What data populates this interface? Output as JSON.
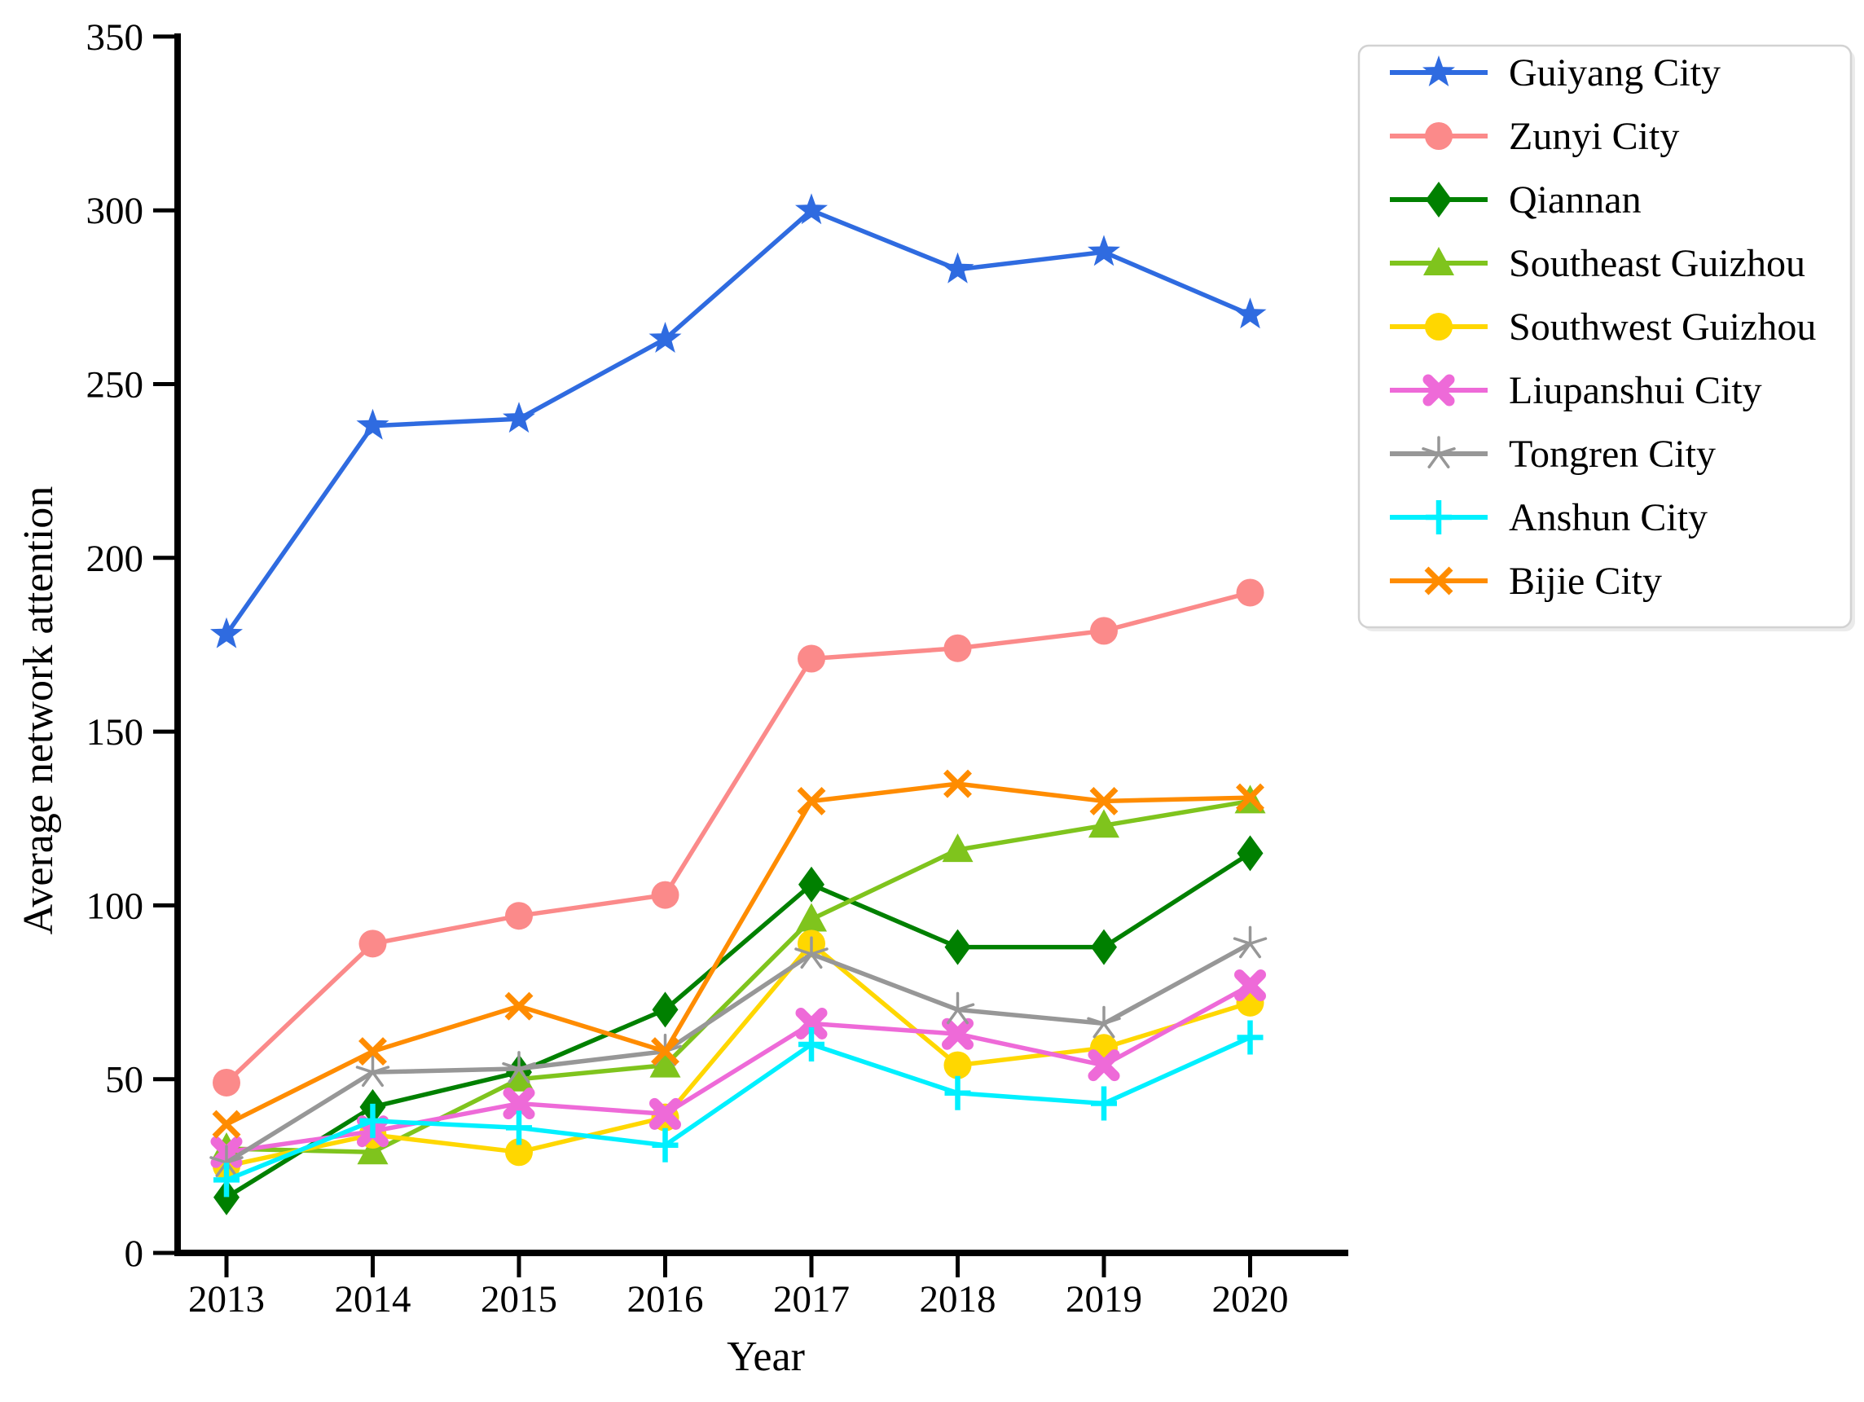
{
  "chart_data": {
    "type": "line",
    "title": "",
    "xlabel": "Year",
    "ylabel": "Average network attention",
    "x": [
      2013,
      2014,
      2015,
      2016,
      2017,
      2018,
      2019,
      2020
    ],
    "x_tick_labels": [
      "2013",
      "2014",
      "2015",
      "2016",
      "2017",
      "2018",
      "2019",
      "2020"
    ],
    "ylim": [
      0,
      350
    ],
    "yticks": [
      0,
      50,
      100,
      150,
      200,
      250,
      300,
      350
    ],
    "ytick_labels": [
      "0",
      "50",
      "100",
      "150",
      "200",
      "250",
      "300",
      "350"
    ],
    "grid": "off",
    "legend_position": "outside-upper-right",
    "series": [
      {
        "name": "Guiyang City",
        "color": "#2f6be0",
        "marker": "star",
        "values": [
          178,
          238,
          240,
          263,
          300,
          283,
          288,
          270
        ]
      },
      {
        "name": "Zunyi City",
        "color": "#fb8a8a",
        "marker": "circle",
        "values": [
          49,
          89,
          97,
          103,
          171,
          174,
          179,
          190
        ]
      },
      {
        "name": "Qiannan",
        "color": "#008000",
        "marker": "diamond",
        "values": [
          16,
          42,
          52,
          70,
          106,
          88,
          88,
          115
        ]
      },
      {
        "name": "Southeast Guizhou",
        "color": "#7fc41d",
        "marker": "triangle",
        "values": [
          30,
          29,
          50,
          54,
          96,
          116,
          123,
          130
        ]
      },
      {
        "name": "Southwest Guizhou",
        "color": "#ffd700",
        "marker": "circle",
        "values": [
          25,
          34,
          29,
          39,
          89,
          54,
          59,
          72
        ]
      },
      {
        "name": "Liupanshui City",
        "color": "#ee6ad8",
        "marker": "x-bold",
        "values": [
          29,
          35,
          43,
          40,
          66,
          63,
          54,
          77
        ]
      },
      {
        "name": "Tongren City",
        "color": "#979797",
        "marker": "star-open",
        "values": [
          26,
          52,
          53,
          58,
          86,
          70,
          66,
          89
        ]
      },
      {
        "name": "Anshun City",
        "color": "#00f0ff",
        "marker": "plus",
        "values": [
          21,
          38,
          36,
          31,
          60,
          46,
          43,
          62
        ]
      },
      {
        "name": "Bijie City",
        "color": "#ff8c00",
        "marker": "x",
        "values": [
          37,
          58,
          71,
          58,
          130,
          135,
          130,
          131
        ]
      }
    ]
  }
}
